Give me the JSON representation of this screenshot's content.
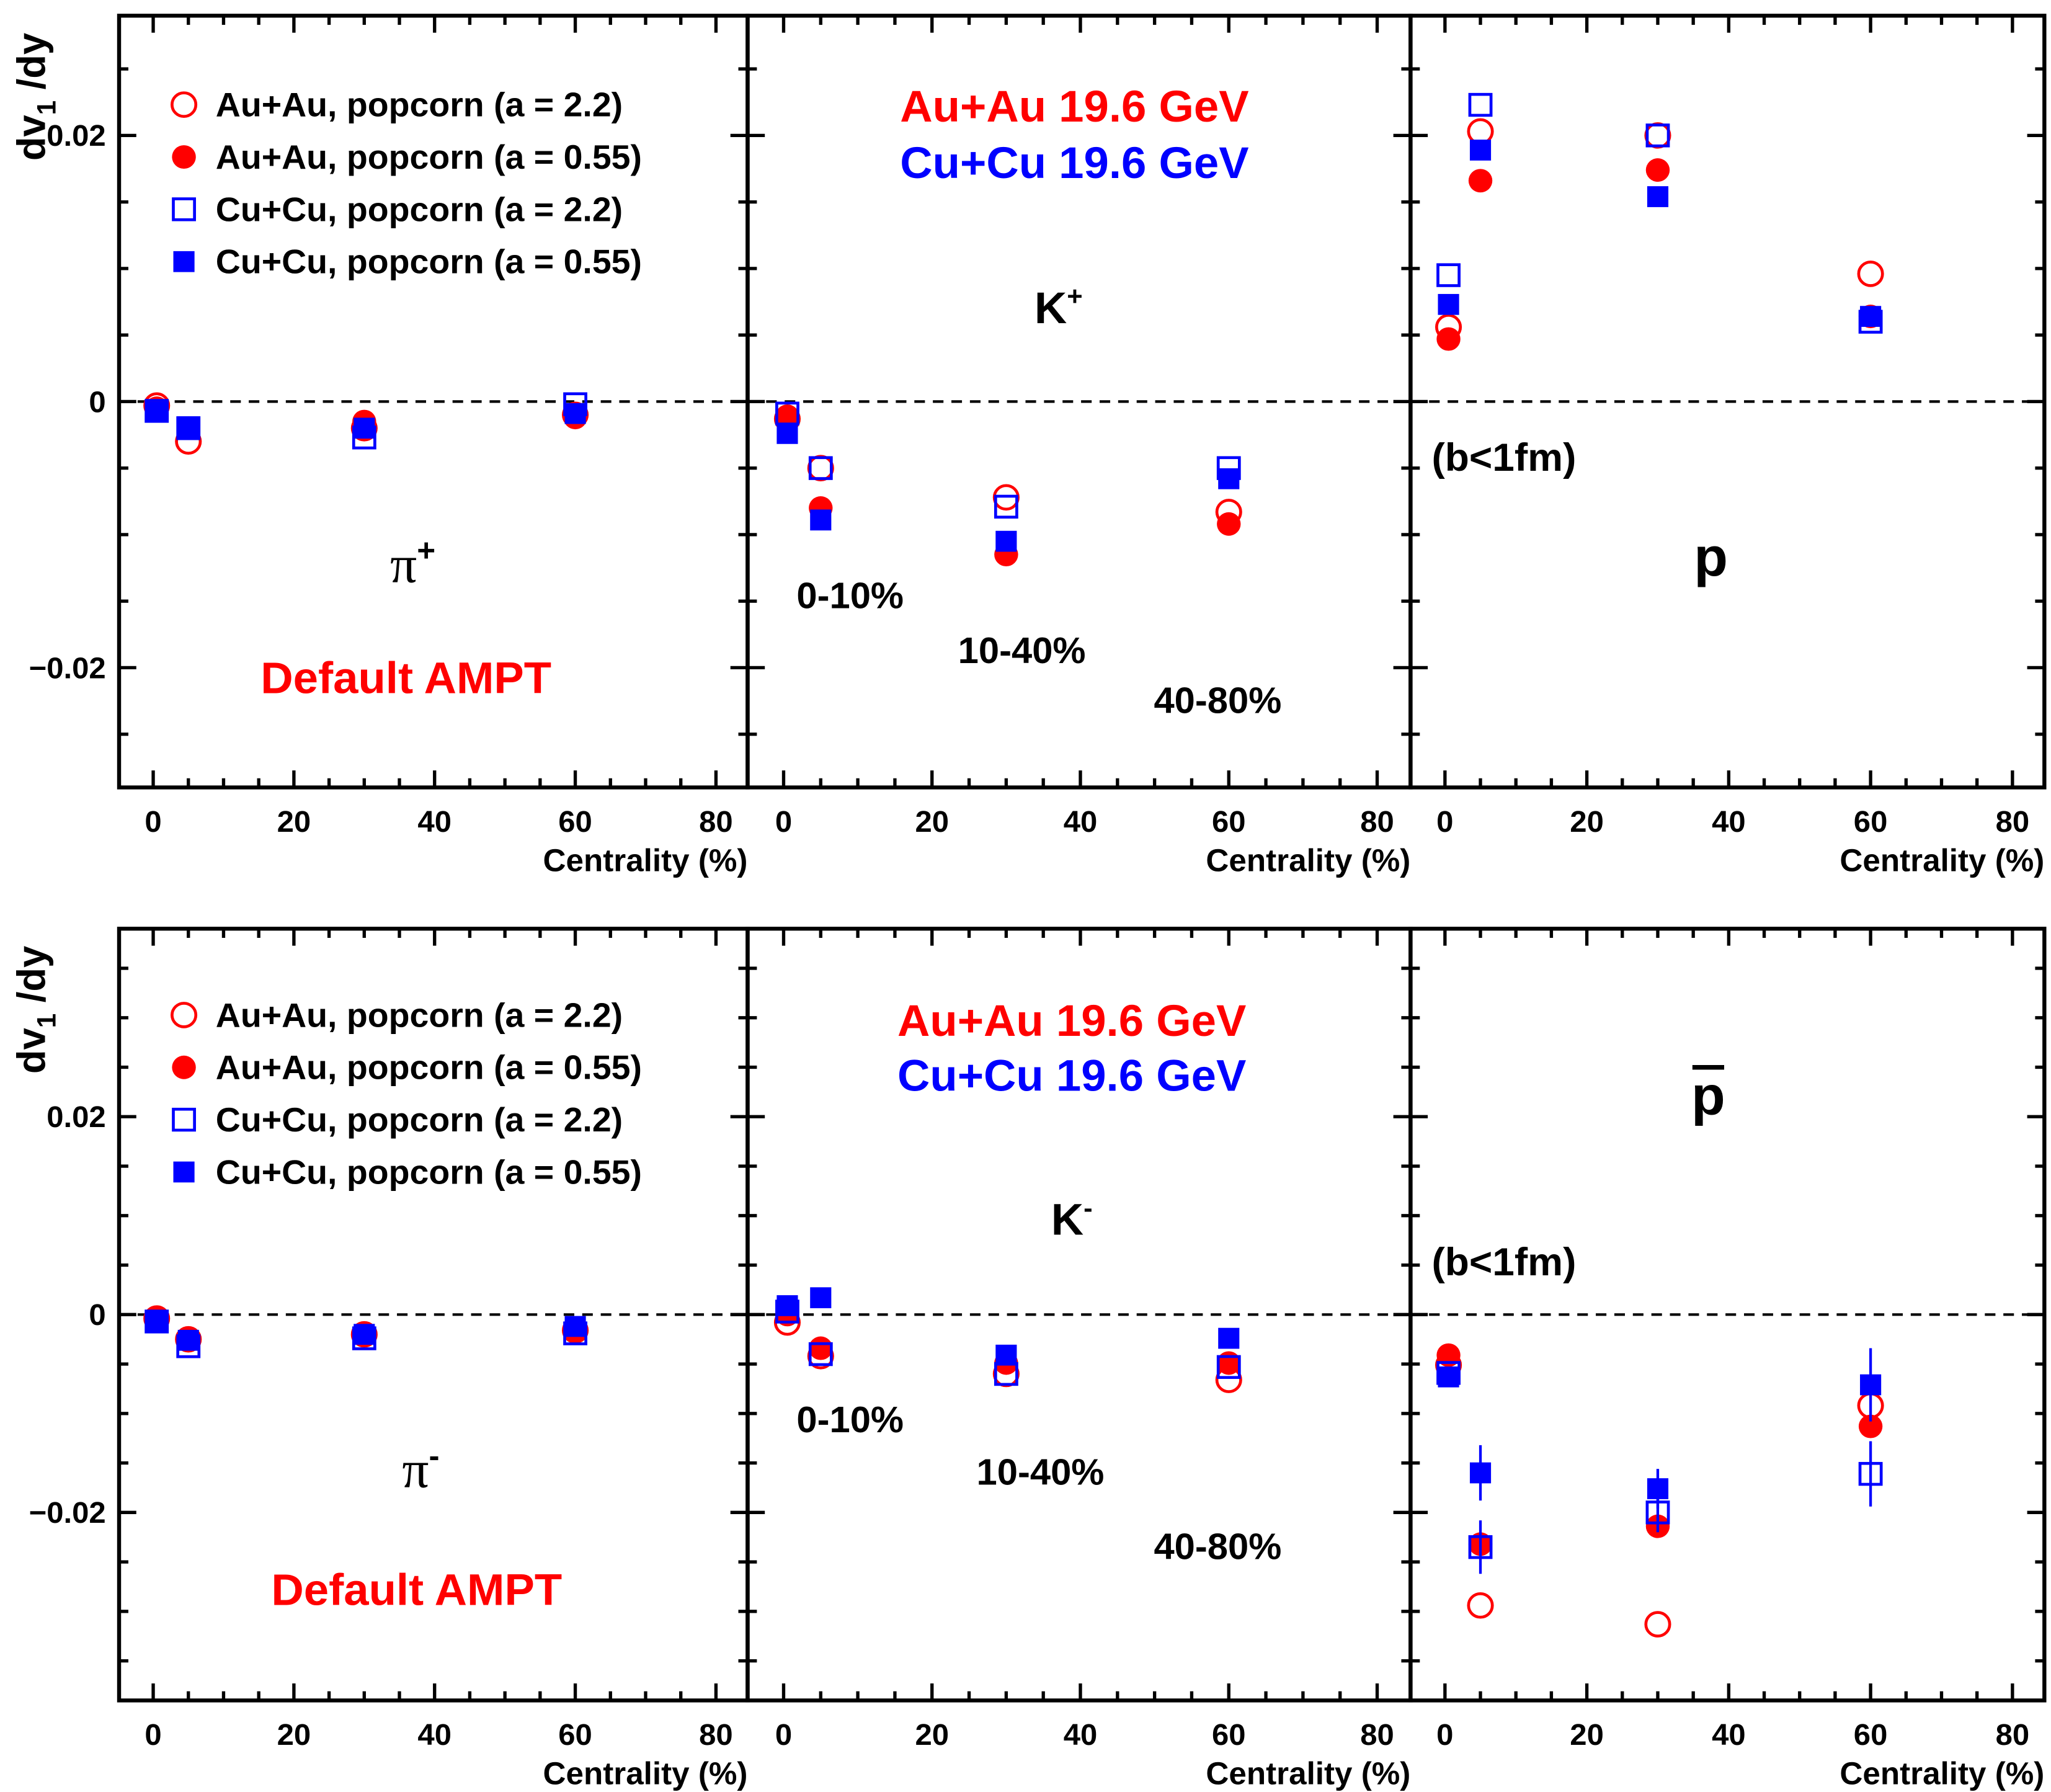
{
  "chart_data": [
    {
      "type": "scatter",
      "xlabel": "Centrality (%)",
      "ylabel": {
        "main": "dv",
        "sub": "1",
        "rest": " /dy"
      },
      "xlim": [
        -4.85,
        84.5
      ],
      "ylim": [
        -0.029,
        0.029
      ],
      "xticks": [
        0,
        20,
        40,
        60,
        80
      ],
      "xtick_labels": [
        "0",
        "20",
        "40",
        "60",
        "80"
      ],
      "yticks": [
        -0.02,
        0,
        0.02
      ],
      "ytick_labels": [
        "−0.02",
        "0",
        "0.02"
      ],
      "grid": false,
      "legend": "top-left",
      "zero_line": "dashed",
      "particle": {
        "base": "π",
        "sup": "+"
      },
      "model_label": "Default AMPT",
      "series": [
        {
          "name": "Au+Au, popcorn (a = 2.2)",
          "marker": "open-circle",
          "color": "#ff0000",
          "x": [
            0.5,
            5,
            30,
            60
          ],
          "y": [
            -0.0003,
            -0.003,
            -0.002,
            -0.001
          ]
        },
        {
          "name": "Au+Au, popcorn (a = 0.55)",
          "marker": "filled-circle",
          "color": "#ff0000",
          "x": [
            0.5,
            5,
            30,
            60
          ],
          "y": [
            -0.0005,
            -0.002,
            -0.0015,
            -0.0012
          ]
        },
        {
          "name": "Cu+Cu, popcorn (a = 2.2)",
          "marker": "open-square",
          "color": "#0000ff",
          "x": [
            0.5,
            5,
            30,
            60
          ],
          "y": [
            -0.0007,
            -0.002,
            -0.0027,
            -0.0002
          ]
        },
        {
          "name": "Cu+Cu, popcorn (a = 0.55)",
          "marker": "filled-square",
          "color": "#0000ff",
          "x": [
            0.5,
            5,
            30,
            60
          ],
          "y": [
            -0.0008,
            -0.0019,
            -0.002,
            -0.0009
          ]
        }
      ]
    },
    {
      "type": "scatter",
      "xlabel": "Centrality (%)",
      "xlim": [
        -4.85,
        84.5
      ],
      "ylim": [
        -0.029,
        0.029
      ],
      "xticks": [
        0,
        20,
        40,
        60,
        80
      ],
      "xtick_labels": [
        "0",
        "20",
        "40",
        "60",
        "80"
      ],
      "grid": false,
      "zero_line": "dashed",
      "particle": {
        "base": "K",
        "sup": "+"
      },
      "system_labels": [
        {
          "text": "Au+Au 19.6 GeV",
          "color": "#ff0000"
        },
        {
          "text": "Cu+Cu 19.6 GeV",
          "color": "#0000ff"
        }
      ],
      "centrality_labels": [
        "0-10%",
        "10-40%",
        "40-80%"
      ],
      "series": [
        {
          "name": "Au+Au, popcorn (a = 2.2)",
          "marker": "open-circle",
          "color": "#ff0000",
          "x": [
            0.5,
            5,
            30,
            60
          ],
          "y": [
            -0.0013,
            -0.005,
            -0.0072,
            -0.0083
          ]
        },
        {
          "name": "Au+Au, popcorn (a = 0.55)",
          "marker": "filled-circle",
          "color": "#ff0000",
          "x": [
            0.5,
            5,
            30,
            60
          ],
          "y": [
            -0.0011,
            -0.008,
            -0.0115,
            -0.0092
          ]
        },
        {
          "name": "Cu+Cu, popcorn (a = 2.2)",
          "marker": "open-square",
          "color": "#0000ff",
          "x": [
            0.5,
            5,
            30,
            60
          ],
          "y": [
            -0.0009,
            -0.005,
            -0.0079,
            -0.005
          ]
        },
        {
          "name": "Cu+Cu, popcorn (a = 0.55)",
          "marker": "filled-square",
          "color": "#0000ff",
          "x": [
            0.5,
            5,
            30,
            60
          ],
          "y": [
            -0.0024,
            -0.0089,
            -0.0105,
            -0.0058
          ]
        }
      ]
    },
    {
      "type": "scatter",
      "xlabel": "Centrality (%)",
      "xlim": [
        -4.85,
        84.5
      ],
      "ylim": [
        -0.029,
        0.029
      ],
      "xticks": [
        0,
        20,
        40,
        60,
        80
      ],
      "xtick_labels": [
        "0",
        "20",
        "40",
        "60",
        "80"
      ],
      "grid": false,
      "zero_line": "dashed",
      "particle": {
        "base": "p",
        "sup": ""
      },
      "note": "(b<1fm)",
      "series": [
        {
          "name": "Au+Au, popcorn (a = 2.2)",
          "marker": "open-circle",
          "color": "#ff0000",
          "x": [
            0.5,
            5,
            30,
            60
          ],
          "y": [
            0.0056,
            0.0203,
            0.02,
            0.0096
          ]
        },
        {
          "name": "Au+Au, popcorn (a = 0.55)",
          "marker": "filled-circle",
          "color": "#ff0000",
          "x": [
            0.5,
            5,
            30,
            60
          ],
          "y": [
            0.0047,
            0.0166,
            0.0174,
            0.0064
          ]
        },
        {
          "name": "Cu+Cu, popcorn (a = 2.2)",
          "marker": "open-square",
          "color": "#0000ff",
          "x": [
            0.5,
            5,
            30,
            60
          ],
          "y": [
            0.0095,
            0.0223,
            0.02,
            0.006
          ]
        },
        {
          "name": "Cu+Cu, popcorn (a = 0.55)",
          "marker": "filled-square",
          "color": "#0000ff",
          "x": [
            0.5,
            5,
            30,
            60
          ],
          "y": [
            0.0073,
            0.0189,
            0.0154,
            0.0064
          ],
          "yerr": [
            0.0003,
            0.0003,
            0.0002,
            0.0006
          ]
        }
      ]
    },
    {
      "type": "scatter",
      "xlabel": "Centrality (%)",
      "ylabel": {
        "main": "dv",
        "sub": "1",
        "rest": " /dy"
      },
      "xlim": [
        -4.85,
        84.5
      ],
      "ylim": [
        -0.039,
        0.039
      ],
      "xticks": [
        0,
        20,
        40,
        60,
        80
      ],
      "xtick_labels": [
        "0",
        "20",
        "40",
        "60",
        "80"
      ],
      "yticks": [
        -0.02,
        0,
        0.02
      ],
      "ytick_labels": [
        "−0.02",
        "0",
        "0.02"
      ],
      "grid": false,
      "legend": "top-left",
      "zero_line": "dashed",
      "particle": {
        "base": "π",
        "sup": "-"
      },
      "model_label": "Default AMPT",
      "series": [
        {
          "name": "Au+Au, popcorn (a = 2.2)",
          "marker": "open-circle",
          "color": "#ff0000",
          "x": [
            0.5,
            5,
            30,
            60
          ],
          "y": [
            -0.0004,
            -0.0025,
            -0.002,
            -0.0016
          ]
        },
        {
          "name": "Au+Au, popcorn (a = 0.55)",
          "marker": "filled-circle",
          "color": "#ff0000",
          "x": [
            0.5,
            5,
            30,
            60
          ],
          "y": [
            -0.0005,
            -0.0024,
            -0.0019,
            -0.0015
          ]
        },
        {
          "name": "Cu+Cu, popcorn (a = 2.2)",
          "marker": "open-square",
          "color": "#0000ff",
          "x": [
            0.5,
            5,
            30,
            60
          ],
          "y": [
            -0.0007,
            -0.0032,
            -0.0024,
            -0.0019
          ]
        },
        {
          "name": "Cu+Cu, popcorn (a = 0.55)",
          "marker": "filled-square",
          "color": "#0000ff",
          "x": [
            0.5,
            5,
            30,
            60
          ],
          "y": [
            -0.0007,
            -0.0026,
            -0.002,
            -0.0012
          ]
        }
      ]
    },
    {
      "type": "scatter",
      "xlabel": "Centrality (%)",
      "xlim": [
        -4.85,
        84.5
      ],
      "ylim": [
        -0.039,
        0.039
      ],
      "xticks": [
        0,
        20,
        40,
        60,
        80
      ],
      "xtick_labels": [
        "0",
        "20",
        "40",
        "60",
        "80"
      ],
      "grid": false,
      "zero_line": "dashed",
      "particle": {
        "base": "K",
        "sup": "-"
      },
      "system_labels": [
        {
          "text": "Au+Au 19.6 GeV",
          "color": "#ff0000"
        },
        {
          "text": "Cu+Cu 19.6 GeV",
          "color": "#0000ff"
        }
      ],
      "centrality_labels": [
        "0-10%",
        "10-40%",
        "40-80%"
      ],
      "series": [
        {
          "name": "Au+Au, popcorn (a = 2.2)",
          "marker": "open-circle",
          "color": "#ff0000",
          "x": [
            0.5,
            5,
            30,
            60
          ],
          "y": [
            -0.0008,
            -0.0042,
            -0.006,
            -0.0066
          ]
        },
        {
          "name": "Au+Au, popcorn (a = 0.55)",
          "marker": "filled-circle",
          "color": "#ff0000",
          "x": [
            0.5,
            5,
            30,
            60
          ],
          "y": [
            0.0,
            -0.0034,
            -0.0049,
            -0.0049
          ]
        },
        {
          "name": "Cu+Cu, popcorn (a = 2.2)",
          "marker": "open-square",
          "color": "#0000ff",
          "x": [
            0.5,
            5,
            30,
            60
          ],
          "y": [
            0.0003,
            -0.004,
            -0.006,
            -0.0053
          ]
        },
        {
          "name": "Cu+Cu, popcorn (a = 0.55)",
          "marker": "filled-square",
          "color": "#0000ff",
          "x": [
            0.5,
            5,
            30,
            60
          ],
          "y": [
            0.0009,
            0.0017,
            -0.0041,
            -0.0024
          ],
          "yerr": [
            0.0004,
            0.0007,
            0.0004,
            0.0008
          ]
        }
      ]
    },
    {
      "type": "scatter",
      "xlabel": "Centrality (%)",
      "xlim": [
        -4.85,
        84.5
      ],
      "ylim": [
        -0.039,
        0.039
      ],
      "xticks": [
        0,
        20,
        40,
        60,
        80
      ],
      "xtick_labels": [
        "0",
        "20",
        "40",
        "60",
        "80"
      ],
      "grid": false,
      "zero_line": "dashed",
      "particle": {
        "base": "p",
        "sup": "",
        "overline": true
      },
      "note": "(b<1fm)",
      "series": [
        {
          "name": "Au+Au, popcorn (a = 2.2)",
          "marker": "open-circle",
          "color": "#ff0000",
          "x": [
            0.5,
            5,
            30,
            60
          ],
          "y": [
            -0.0051,
            -0.0294,
            -0.0313,
            -0.0092
          ]
        },
        {
          "name": "Au+Au, popcorn (a = 0.55)",
          "marker": "filled-circle",
          "color": "#ff0000",
          "x": [
            0.5,
            5,
            30,
            60
          ],
          "y": [
            -0.0041,
            -0.0232,
            -0.0214,
            -0.0113
          ]
        },
        {
          "name": "Cu+Cu, popcorn (a = 2.2)",
          "marker": "open-square",
          "color": "#0000ff",
          "x": [
            0.5,
            5,
            30,
            60
          ],
          "y": [
            -0.0059,
            -0.0235,
            -0.02,
            -0.0161
          ],
          "yerr": [
            0.0005,
            0.0027,
            0.002,
            0.0033
          ]
        },
        {
          "name": "Cu+Cu, popcorn (a = 0.55)",
          "marker": "filled-square",
          "color": "#0000ff",
          "x": [
            0.5,
            5,
            30,
            60
          ],
          "y": [
            -0.0063,
            -0.016,
            -0.0176,
            -0.0071
          ],
          "yerr": [
            0.0005,
            0.0028,
            0.002,
            0.0037
          ]
        }
      ]
    }
  ]
}
